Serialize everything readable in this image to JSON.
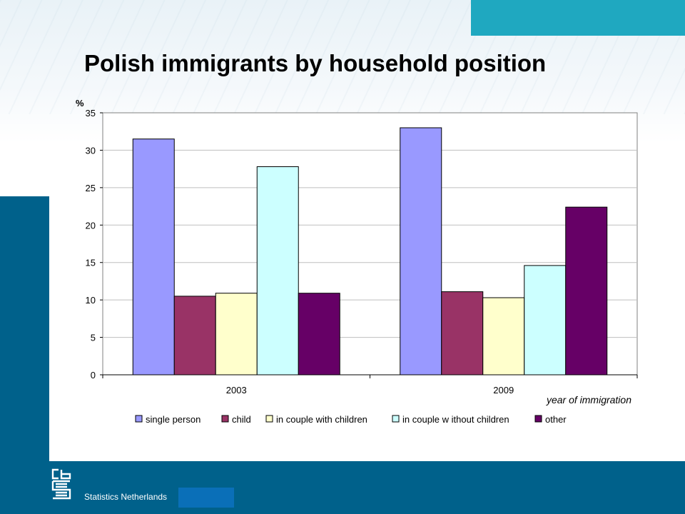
{
  "slide": {
    "title": "Polish immigrants by household position",
    "footer": "Statistics Netherlands"
  },
  "colors": {
    "accent": "#1fa8c0",
    "band": "#00618b",
    "gridline": "#bfbfbf"
  },
  "chart_data": {
    "type": "bar",
    "title": "",
    "ylabel": "%",
    "xlabel": "year of immigration",
    "ylim": [
      0,
      35
    ],
    "yticks": [
      0,
      5,
      10,
      15,
      20,
      25,
      30,
      35
    ],
    "grid": true,
    "legend_position": "bottom",
    "categories": [
      "2003",
      "2009"
    ],
    "series": [
      {
        "name": "single person",
        "color": "#9999ff",
        "values": [
          31.5,
          33.0
        ]
      },
      {
        "name": "child",
        "color": "#993366",
        "values": [
          10.5,
          11.1
        ]
      },
      {
        "name": "in couple with children",
        "color": "#ffffcc",
        "values": [
          10.9,
          10.3
        ]
      },
      {
        "name": "in couple w ithout children",
        "color": "#ccffff",
        "values": [
          27.8,
          14.6
        ]
      },
      {
        "name": "other",
        "color": "#660066",
        "values": [
          10.9,
          22.4
        ]
      }
    ]
  }
}
